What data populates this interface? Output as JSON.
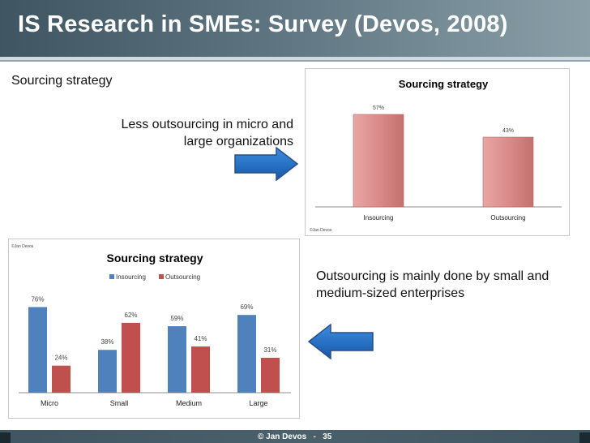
{
  "slide": {
    "title": "IS Research in SMEs: Survey (Devos, 2008)",
    "subtitle": "Sourcing strategy",
    "note_top": "Less outsourcing in micro and large organizations",
    "note_bottom": "Outsourcing is mainly done by small and medium-sized enterprises",
    "footer": "© Jan Devos   -   35"
  },
  "colors": {
    "header": "#4f6672",
    "arrow": "#1f6fc0",
    "bar_pink": "#d98c8a",
    "insourcing": "#4f81bd",
    "outsourcing": "#c0504d"
  },
  "icons": {
    "arrow_right": "arrow-right-icon",
    "arrow_left": "arrow-left-icon"
  },
  "chart_data": [
    {
      "type": "bar",
      "title": "Sourcing strategy",
      "credit": "©Jan Devos",
      "categories": [
        "Insourcing",
        "Outsourcing"
      ],
      "values": [
        57,
        43
      ],
      "value_labels": [
        "57%",
        "43%"
      ],
      "ylim": [
        0,
        70
      ]
    },
    {
      "type": "bar",
      "title": "Sourcing strategy",
      "credit": "©Jan Devos",
      "categories": [
        "Micro",
        "Small",
        "Medium",
        "Large"
      ],
      "series": [
        {
          "name": "Insourcing",
          "values": [
            76,
            38,
            59,
            69
          ],
          "labels": [
            "76%",
            "38%",
            "59%",
            "69%"
          ]
        },
        {
          "name": "Outsourcing",
          "values": [
            24,
            62,
            41,
            31
          ],
          "labels": [
            "24%",
            "62%",
            "41%",
            "31%"
          ]
        }
      ],
      "ylim": [
        0,
        90
      ]
    }
  ]
}
